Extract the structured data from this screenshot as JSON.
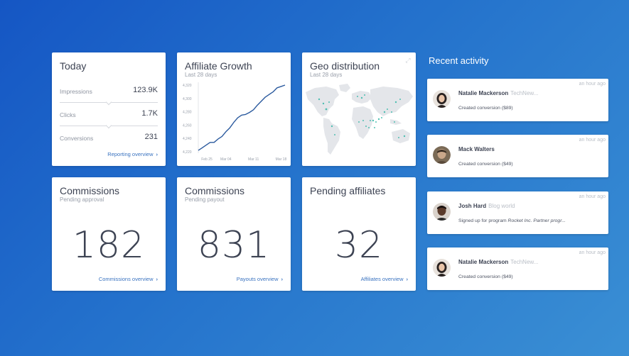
{
  "today": {
    "title": "Today",
    "stats": [
      {
        "label": "Impressions",
        "value": "123.9K"
      },
      {
        "label": "Clicks",
        "value": "1.7K"
      },
      {
        "label": "Conversions",
        "value": "231"
      }
    ],
    "link": "Reporting overview"
  },
  "growth": {
    "title": "Affiliate Growth",
    "subtitle": "Last 28 days"
  },
  "chart_data": {
    "type": "line",
    "title": "Affiliate Growth",
    "subtitle": "Last 28 days",
    "x": [
      "Feb 25",
      "Feb 26",
      "Feb 27",
      "Feb 28",
      "Mar 01",
      "Mar 02",
      "Mar 03",
      "Mar 04",
      "Mar 05",
      "Mar 06",
      "Mar 07",
      "Mar 08",
      "Mar 09",
      "Mar 10",
      "Mar 11",
      "Mar 12",
      "Mar 13",
      "Mar 14",
      "Mar 15",
      "Mar 16",
      "Mar 17",
      "Mar 18",
      "Mar 19"
    ],
    "values": [
      4222,
      4226,
      4230,
      4234,
      4234,
      4239,
      4243,
      4250,
      4256,
      4264,
      4271,
      4275,
      4276,
      4279,
      4283,
      4290,
      4296,
      4302,
      4306,
      4310,
      4316,
      4318,
      4320
    ],
    "xticks": [
      "Feb 25",
      "Mar 04",
      "Mar 11",
      "Mar 18"
    ],
    "yticks": [
      "4,220",
      "4,240",
      "4,260",
      "4,280",
      "4,300",
      "4,320"
    ],
    "ylim": [
      4220,
      4320
    ],
    "color": "#2b5a9e"
  },
  "geo": {
    "title": "Geo distribution",
    "subtitle": "Last 28 days"
  },
  "commissions_approval": {
    "title": "Commissions",
    "subtitle": "Pending approval",
    "value": "182",
    "link": "Commissions overview"
  },
  "commissions_payout": {
    "title": "Commissions",
    "subtitle": "Pending payout",
    "value": "831",
    "link": "Payouts overview"
  },
  "pending_affiliates": {
    "title": "Pending affiliates",
    "value": "32",
    "link": "Affiliates overview"
  },
  "activity": {
    "title": "Recent activity",
    "items": [
      {
        "name": "Natalie Mackerson",
        "company": "TechNew...",
        "time": "an hour ago",
        "desc": "Created conversion ($89)"
      },
      {
        "name": "Mack Walters",
        "company": "",
        "time": "an hour ago",
        "desc": "Created conversion ($49)"
      },
      {
        "name": "Josh Hard",
        "company": "Blog world",
        "time": "an hour ago",
        "desc_prefix": "Signed up for program ",
        "desc_italic": "Rocket Inc. Partner progr..."
      },
      {
        "name": "Natalie Mackerson",
        "company": "TechNew...",
        "time": "an hour ago",
        "desc": "Created conversion ($49)"
      }
    ]
  },
  "colors": {
    "accent": "#3a73c0",
    "line": "#2b5a9e",
    "map_land": "#e4e6ea",
    "map_dot": "#36b8a8"
  }
}
